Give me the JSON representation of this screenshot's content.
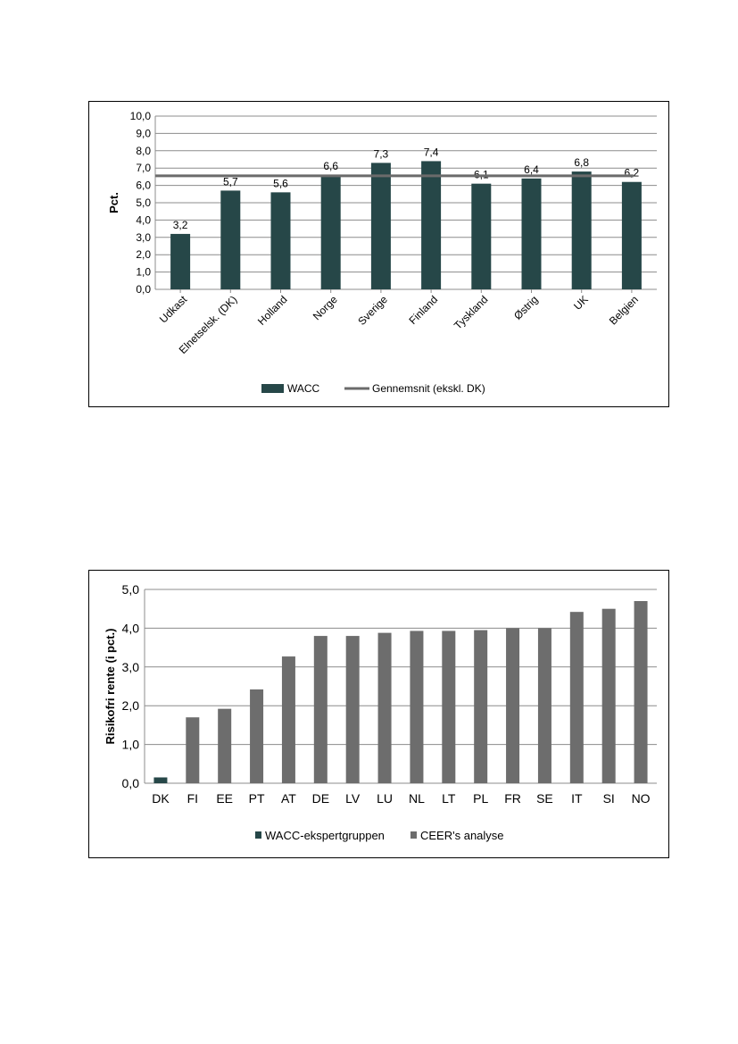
{
  "chart_data": [
    {
      "type": "bar",
      "ylabel": "Pct.",
      "ylim": [
        0,
        10
      ],
      "ytick_labels": [
        "0,0",
        "1,0",
        "2,0",
        "3,0",
        "4,0",
        "5,0",
        "6,0",
        "7,0",
        "8,0",
        "9,0",
        "10,0"
      ],
      "categories": [
        "Udkast",
        "Elnetselsk. (DK)",
        "Holland",
        "Norge",
        "Sverige",
        "Finland",
        "Tyskland",
        "Østrig",
        "UK",
        "Belgien"
      ],
      "series": [
        {
          "name": "WACC",
          "type": "bar",
          "values": [
            3.2,
            5.7,
            5.6,
            6.6,
            7.3,
            7.4,
            6.1,
            6.4,
            6.8,
            6.2
          ],
          "color": "#264748"
        },
        {
          "name": "Gennemsnit (ekskl. DK)",
          "type": "line",
          "values": [
            6.55,
            6.55,
            6.55,
            6.55,
            6.55,
            6.55,
            6.55,
            6.55,
            6.55,
            6.55
          ],
          "color": "#6b6b6b"
        }
      ],
      "data_labels": [
        "3,2",
        "5,7",
        "5,6",
        "6,6",
        "7,3",
        "7,4",
        "6,1",
        "6,4",
        "6,8",
        "6,2"
      ],
      "grid": true,
      "legend_position": "bottom"
    },
    {
      "type": "bar",
      "ylabel": "Risikofri rente (i pct.)",
      "ylim": [
        0,
        5
      ],
      "ytick_labels": [
        "0,0",
        "1,0",
        "2,0",
        "3,0",
        "4,0",
        "5,0"
      ],
      "categories": [
        "DK",
        "FI",
        "EE",
        "PT",
        "AT",
        "DE",
        "LV",
        "LU",
        "NL",
        "LT",
        "PL",
        "FR",
        "SE",
        "IT",
        "SI",
        "NO"
      ],
      "series": [
        {
          "name": "WACC-ekspertgruppen",
          "values": [
            0.15,
            null,
            null,
            null,
            null,
            null,
            null,
            null,
            null,
            null,
            null,
            null,
            null,
            null,
            null,
            null
          ],
          "color": "#264748"
        },
        {
          "name": "CEER's analyse",
          "values": [
            null,
            1.7,
            1.92,
            2.42,
            3.27,
            3.8,
            3.8,
            3.88,
            3.93,
            3.93,
            3.95,
            4.0,
            4.0,
            4.42,
            4.5,
            4.7
          ],
          "color": "#6d6d6d"
        }
      ],
      "grid": true,
      "legend_position": "bottom"
    }
  ]
}
